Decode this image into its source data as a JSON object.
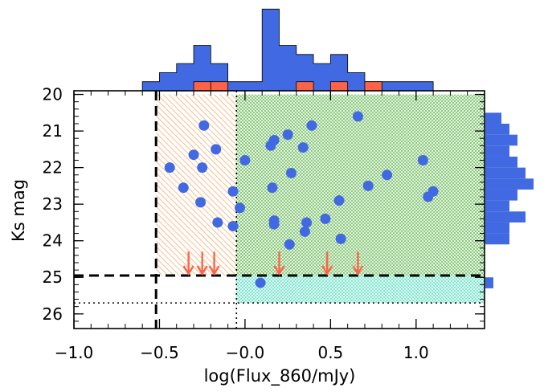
{
  "chart_data": {
    "type": "scatter",
    "xlabel": "log(Flux_860/mJy)",
    "ylabel": "Ks mag",
    "xlim": [
      -1.0,
      1.4
    ],
    "ylim": [
      26.4,
      19.9
    ],
    "y_inverted": true,
    "x_ticks": [
      -1.0,
      -0.5,
      0.0,
      0.5,
      1.0
    ],
    "x_tick_labels": [
      "−1.0",
      "−0.5",
      "−0.0",
      "0.5",
      "1.0"
    ],
    "y_ticks": [
      20,
      21,
      22,
      23,
      24,
      25,
      26
    ],
    "y_tick_labels": [
      "20",
      "21",
      "22",
      "23",
      "24",
      "25",
      "26"
    ],
    "grid": false,
    "colors": {
      "points": "#4169E1",
      "arrows": "#FF6347",
      "hist_all": "#4169E1",
      "hist_sub": "#FF6347",
      "region_left": "#F5A25A",
      "region_right": "#7BC26B",
      "region_bottom": "#6FE3C8"
    },
    "regions": [
      {
        "x": [
          -0.52,
          -0.05
        ],
        "y": [
          20.0,
          24.95
        ],
        "fill": "region_left"
      },
      {
        "x": [
          -0.05,
          1.4
        ],
        "y": [
          20.0,
          24.95
        ],
        "fill": "region_right"
      },
      {
        "x": [
          -0.05,
          1.4
        ],
        "y": [
          24.95,
          25.7
        ],
        "fill": "region_bottom"
      }
    ],
    "reference_lines": [
      {
        "orientation": "vertical",
        "x": -0.52,
        "style": "dashed"
      },
      {
        "orientation": "horizontal",
        "y": 24.95,
        "style": "dashed"
      },
      {
        "orientation": "vertical",
        "x": -0.05,
        "style": "dotted"
      },
      {
        "orientation": "horizontal",
        "y": 25.7,
        "style": "dotted"
      }
    ],
    "points": [
      {
        "x": -0.24,
        "y": 20.85
      },
      {
        "x": -0.44,
        "y": 22.0
      },
      {
        "x": -0.36,
        "y": 22.55
      },
      {
        "x": -0.3,
        "y": 21.65
      },
      {
        "x": -0.25,
        "y": 22.0
      },
      {
        "x": -0.26,
        "y": 22.95
      },
      {
        "x": -0.17,
        "y": 21.5
      },
      {
        "x": -0.16,
        "y": 23.5
      },
      {
        "x": -0.07,
        "y": 23.6
      },
      {
        "x": -0.07,
        "y": 22.65
      },
      {
        "x": -0.03,
        "y": 23.1
      },
      {
        "x": 0.0,
        "y": 21.8
      },
      {
        "x": 0.15,
        "y": 21.4
      },
      {
        "x": 0.17,
        "y": 21.25
      },
      {
        "x": 0.16,
        "y": 22.55
      },
      {
        "x": 0.17,
        "y": 23.45
      },
      {
        "x": 0.17,
        "y": 23.55
      },
      {
        "x": 0.25,
        "y": 21.1
      },
      {
        "x": 0.27,
        "y": 22.15
      },
      {
        "x": 0.26,
        "y": 24.1
      },
      {
        "x": 0.34,
        "y": 21.45
      },
      {
        "x": 0.36,
        "y": 23.5
      },
      {
        "x": 0.35,
        "y": 23.75
      },
      {
        "x": 0.39,
        "y": 20.85
      },
      {
        "x": 0.47,
        "y": 23.4
      },
      {
        "x": 0.55,
        "y": 22.9
      },
      {
        "x": 0.56,
        "y": 23.95
      },
      {
        "x": 0.66,
        "y": 20.6
      },
      {
        "x": 0.72,
        "y": 22.5
      },
      {
        "x": 0.83,
        "y": 22.2
      },
      {
        "x": 1.04,
        "y": 21.8
      },
      {
        "x": 1.07,
        "y": 22.8
      },
      {
        "x": 1.1,
        "y": 22.65
      },
      {
        "x": 0.09,
        "y": 25.15
      }
    ],
    "upper_limit_arrows": [
      {
        "x": -0.33,
        "y_start": 24.3,
        "y_end": 24.95
      },
      {
        "x": -0.25,
        "y_start": 24.3,
        "y_end": 24.95
      },
      {
        "x": -0.18,
        "y_start": 24.3,
        "y_end": 24.95
      },
      {
        "x": 0.2,
        "y_start": 24.3,
        "y_end": 24.95
      },
      {
        "x": 0.48,
        "y_start": 24.3,
        "y_end": 24.95
      },
      {
        "x": 0.66,
        "y_start": 24.3,
        "y_end": 24.95
      }
    ],
    "top_histogram": {
      "bin_edges": [
        -0.6,
        -0.5,
        -0.4,
        -0.3,
        -0.2,
        -0.1,
        0.0,
        0.1,
        0.2,
        0.3,
        0.4,
        0.5,
        0.6,
        0.7,
        0.8,
        0.9,
        1.0,
        1.1
      ],
      "counts_all": [
        1,
        2,
        3,
        5,
        3,
        1,
        1,
        9,
        5,
        4,
        3,
        4,
        2,
        1,
        1,
        1,
        1
      ],
      "counts_sub": [
        0,
        0,
        0,
        1,
        1,
        0,
        0,
        0,
        0,
        1,
        0,
        1,
        0,
        1,
        0,
        0,
        0
      ]
    },
    "right_histogram": {
      "bin_edges": [
        20.5,
        20.8,
        21.1,
        21.4,
        21.7,
        22.0,
        22.3,
        22.6,
        22.9,
        23.2,
        23.5,
        23.8,
        24.1,
        24.4,
        24.7,
        25.0,
        25.3
      ],
      "counts": [
        2,
        3,
        4,
        3,
        4,
        5,
        6,
        4,
        3,
        5,
        3,
        3,
        0,
        0,
        0,
        1
      ]
    }
  }
}
